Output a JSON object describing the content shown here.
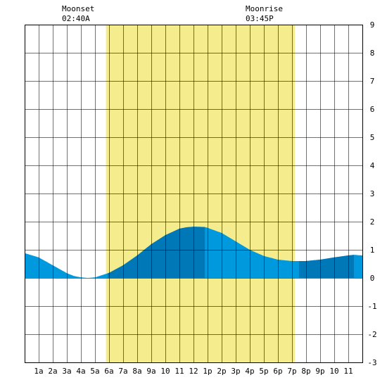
{
  "moon": {
    "moonset_label": "Moonset",
    "moonset_time": "02:40A",
    "moonrise_label": "Moonrise",
    "moonrise_time": "03:45P"
  },
  "chart_data": {
    "type": "area",
    "title": "",
    "xlabel": "",
    "ylabel": "",
    "xlim": [
      0,
      24
    ],
    "ylim": [
      -3,
      9
    ],
    "grid": true,
    "x_tick_labels": [
      "1a",
      "2a",
      "3a",
      "4a",
      "5a",
      "6a",
      "7a",
      "8a",
      "9a",
      "10",
      "11",
      "12",
      "1p",
      "2p",
      "3p",
      "4p",
      "5p",
      "6p",
      "7p",
      "8p",
      "9p",
      "10",
      "11"
    ],
    "y_tick_labels": [
      "9",
      "8",
      "7",
      "6",
      "5",
      "4",
      "3",
      "2",
      "1",
      "0",
      "-1",
      "-2",
      "-3"
    ],
    "daylight": {
      "start_hour": 5.78,
      "end_hour": 19.2,
      "color": "#f5ec8e"
    },
    "moonset_hour": 2.67,
    "moonrise_hour": 15.75,
    "series": [
      {
        "x": [
          0,
          1,
          2,
          3,
          3.5,
          4,
          4.5,
          5,
          6,
          7,
          8,
          9,
          10,
          11,
          11.5,
          12,
          12.8,
          13,
          14,
          15,
          16,
          17,
          18,
          19,
          19.5,
          20,
          21,
          22,
          23,
          23.4,
          24
        ],
        "y": [
          0.88,
          0.73,
          0.45,
          0.17,
          0.07,
          0.02,
          0.0,
          0.02,
          0.18,
          0.45,
          0.8,
          1.2,
          1.52,
          1.75,
          1.8,
          1.82,
          1.81,
          1.78,
          1.6,
          1.3,
          1.0,
          0.78,
          0.65,
          0.6,
          0.6,
          0.6,
          0.65,
          0.73,
          0.8,
          0.82,
          0.8
        ]
      }
    ],
    "colors": {
      "light_fill": "#0099dd",
      "dark_fill": "#0077b6",
      "grid": "#000000",
      "background": "#ffffff"
    },
    "dark_bands": [
      [
        5.9,
        12.8
      ],
      [
        19.5,
        23.4
      ]
    ]
  }
}
